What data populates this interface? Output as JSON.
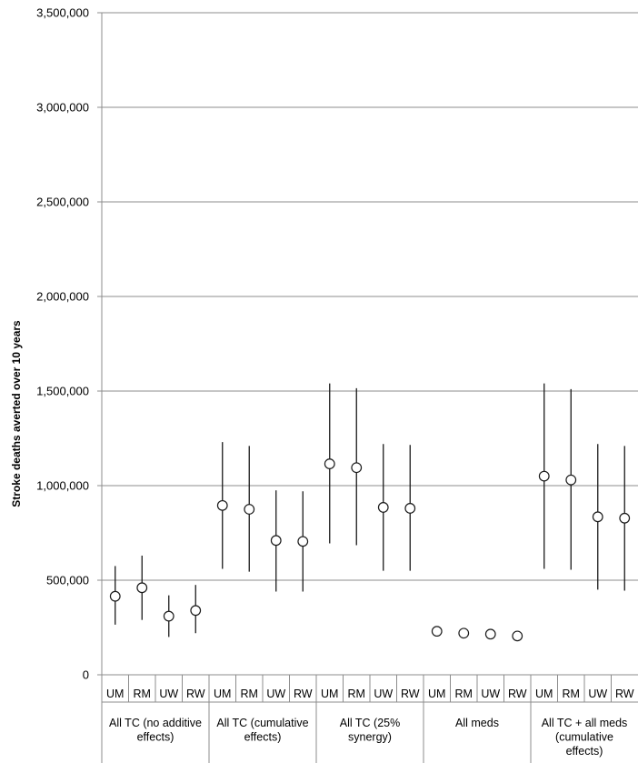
{
  "chart_data": {
    "type": "scatter",
    "title": "",
    "xlabel": "",
    "ylabel": "Stroke deaths averted over 10 years",
    "ylim": [
      0,
      3500000
    ],
    "yticks": [
      0,
      500000,
      1000000,
      1500000,
      2000000,
      2500000,
      3000000,
      3500000
    ],
    "ytick_labels": [
      "0",
      "500,000",
      "1,000,000",
      "1,500,000",
      "2,000,000",
      "2,500,000",
      "3,000,000",
      "3,500,000"
    ],
    "grid": true,
    "legend": "none",
    "subcategories": [
      "UM",
      "RM",
      "UW",
      "RW"
    ],
    "groups": [
      {
        "label_lines": [
          "All TC (no additive",
          "effects)"
        ],
        "points": [
          {
            "cat": "UM",
            "value": 415000,
            "low": 265000,
            "high": 575000
          },
          {
            "cat": "RM",
            "value": 460000,
            "low": 290000,
            "high": 630000
          },
          {
            "cat": "UW",
            "value": 310000,
            "low": 200000,
            "high": 420000
          },
          {
            "cat": "RW",
            "value": 340000,
            "low": 220000,
            "high": 475000
          }
        ]
      },
      {
        "label_lines": [
          "All TC (cumulative",
          "effects)"
        ],
        "points": [
          {
            "cat": "UM",
            "value": 895000,
            "low": 560000,
            "high": 1230000
          },
          {
            "cat": "RM",
            "value": 875000,
            "low": 545000,
            "high": 1210000
          },
          {
            "cat": "UW",
            "value": 710000,
            "low": 440000,
            "high": 975000
          },
          {
            "cat": "RW",
            "value": 705000,
            "low": 440000,
            "high": 970000
          }
        ]
      },
      {
        "label_lines": [
          "All TC (25%",
          "synergy)"
        ],
        "points": [
          {
            "cat": "UM",
            "value": 1115000,
            "low": 695000,
            "high": 1540000
          },
          {
            "cat": "RM",
            "value": 1095000,
            "low": 685000,
            "high": 1515000
          },
          {
            "cat": "UW",
            "value": 885000,
            "low": 550000,
            "high": 1220000
          },
          {
            "cat": "RW",
            "value": 880000,
            "low": 550000,
            "high": 1215000
          }
        ]
      },
      {
        "label_lines": [
          "All meds"
        ],
        "points": [
          {
            "cat": "UM",
            "value": 230000,
            "low": null,
            "high": null
          },
          {
            "cat": "RM",
            "value": 220000,
            "low": null,
            "high": null
          },
          {
            "cat": "UW",
            "value": 215000,
            "low": null,
            "high": null
          },
          {
            "cat": "RW",
            "value": 205000,
            "low": null,
            "high": null
          }
        ]
      },
      {
        "label_lines": [
          "All TC + all meds",
          "(cumulative",
          "effects)"
        ],
        "points": [
          {
            "cat": "UM",
            "value": 1050000,
            "low": 560000,
            "high": 1540000
          },
          {
            "cat": "RM",
            "value": 1030000,
            "low": 555000,
            "high": 1510000
          },
          {
            "cat": "UW",
            "value": 835000,
            "low": 450000,
            "high": 1220000
          },
          {
            "cat": "RW",
            "value": 828000,
            "low": 445000,
            "high": 1210000
          }
        ]
      }
    ]
  }
}
